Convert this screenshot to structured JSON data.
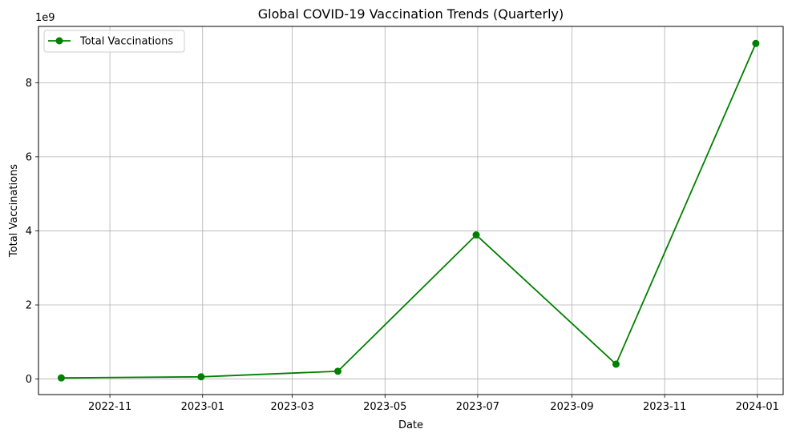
{
  "chart_data": {
    "type": "line",
    "title": "Global COVID-19 Vaccination Trends (Quarterly)",
    "xlabel": "Date",
    "ylabel": "Total Vaccinations",
    "y_offset_label": "1e9",
    "x_ticks": [
      {
        "date": "2022-11-01",
        "label": "2022-11"
      },
      {
        "date": "2023-01-01",
        "label": "2023-01"
      },
      {
        "date": "2023-03-01",
        "label": "2023-03"
      },
      {
        "date": "2023-05-01",
        "label": "2023-05"
      },
      {
        "date": "2023-07-01",
        "label": "2023-07"
      },
      {
        "date": "2023-09-01",
        "label": "2023-09"
      },
      {
        "date": "2023-11-01",
        "label": "2023-11"
      },
      {
        "date": "2024-01-01",
        "label": "2024-01"
      }
    ],
    "y_ticks": [
      {
        "value": 0,
        "label": "0"
      },
      {
        "value": 2,
        "label": "2"
      },
      {
        "value": 4,
        "label": "4"
      },
      {
        "value": 6,
        "label": "6"
      },
      {
        "value": 8,
        "label": "8"
      }
    ],
    "x_range": [
      "2022-09-15",
      "2024-01-18"
    ],
    "y_range": [
      -0.42,
      9.52
    ],
    "y_scale_note": "values in units of 1e9",
    "grid": true,
    "legend_position": "top-left",
    "series": [
      {
        "name": "Total Vaccinations",
        "color": "#008000",
        "marker": "circle",
        "points": [
          {
            "date": "2022-09-30",
            "value": 0.03
          },
          {
            "date": "2022-12-31",
            "value": 0.06
          },
          {
            "date": "2023-03-31",
            "value": 0.21
          },
          {
            "date": "2023-06-30",
            "value": 3.89
          },
          {
            "date": "2023-09-30",
            "value": 0.4
          },
          {
            "date": "2023-12-31",
            "value": 9.06
          }
        ]
      }
    ]
  }
}
